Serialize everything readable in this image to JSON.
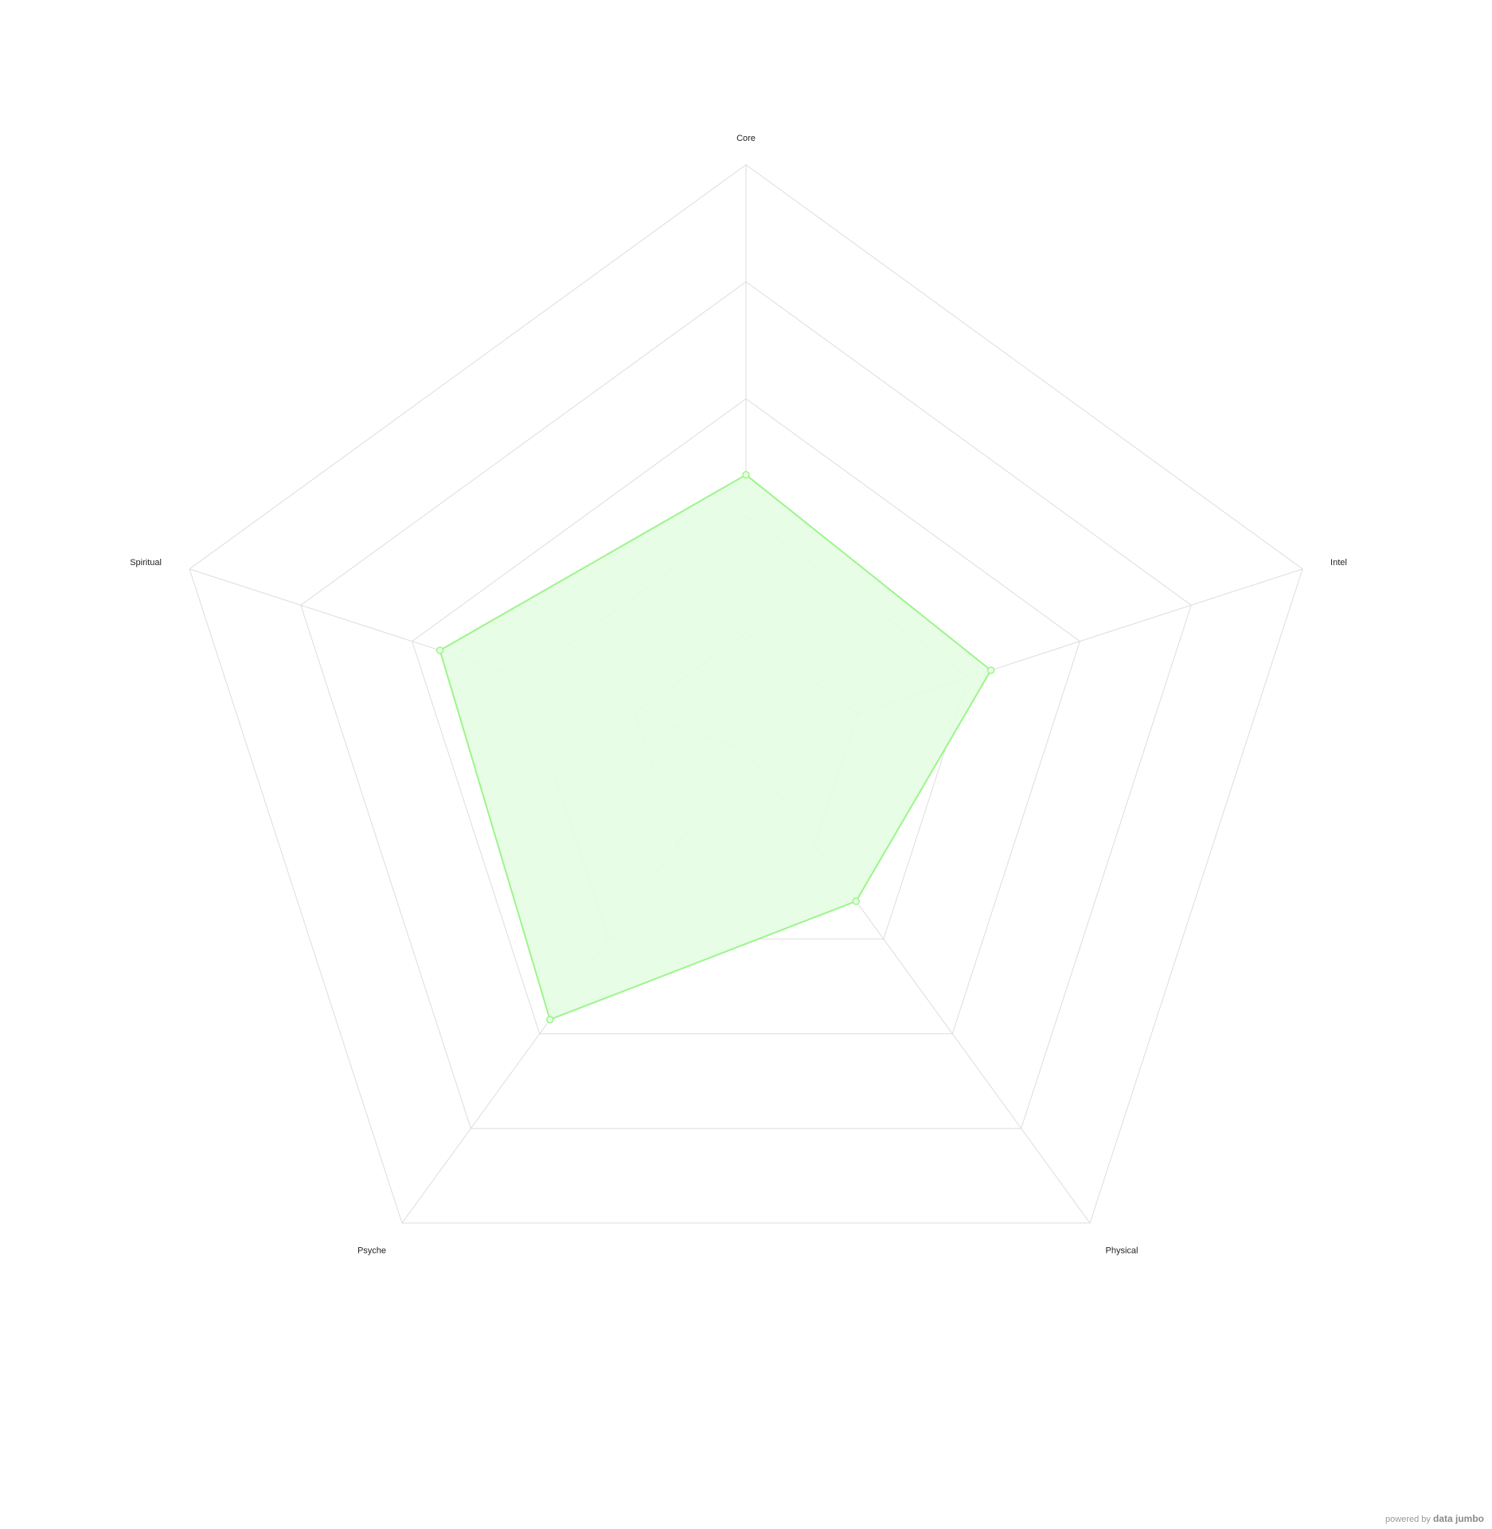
{
  "chart_data": {
    "type": "radar",
    "title": "",
    "categories": [
      "Core",
      "Intel",
      "Physical",
      "Psyche",
      "Spiritual"
    ],
    "rmax": 5,
    "grid_levels": 5,
    "grid": true,
    "legend": "none",
    "series": [
      {
        "values": [
          2.35,
          2.2,
          1.6,
          2.85,
          2.75
        ],
        "color": "#9cf58c",
        "fill": "#e6fde2"
      }
    ]
  },
  "footer": {
    "prefix": "powered by",
    "brand": "data jumbo"
  },
  "colors": {
    "grid": "#dddddd",
    "label": "#222222"
  }
}
